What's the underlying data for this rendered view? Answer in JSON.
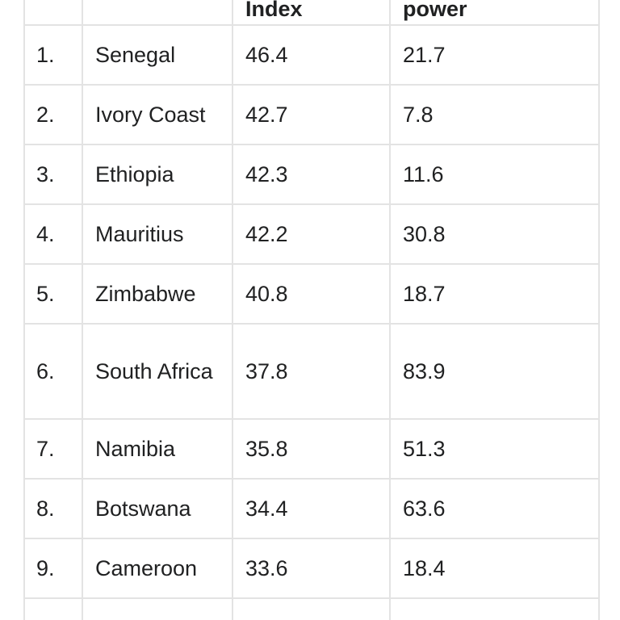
{
  "table": {
    "headers": [
      "",
      "",
      "Index",
      "power"
    ],
    "rows": [
      {
        "rank": "1.",
        "country": "Senegal",
        "index": "46.4",
        "power": "21.7"
      },
      {
        "rank": "2.",
        "country": "Ivory Coast",
        "index": "42.7",
        "power": "7.8"
      },
      {
        "rank": "3.",
        "country": "Ethiopia",
        "index": "42.3",
        "power": "11.6"
      },
      {
        "rank": "4.",
        "country": "Mauritius",
        "index": "42.2",
        "power": "30.8"
      },
      {
        "rank": "5.",
        "country": "Zimbabwe",
        "index": "40.8",
        "power": "18.7"
      },
      {
        "rank": "6.",
        "country": "South Africa",
        "index": "37.8",
        "power": "83.9"
      },
      {
        "rank": "7.",
        "country": "Namibia",
        "index": "35.8",
        "power": "51.3"
      },
      {
        "rank": "8.",
        "country": "Botswana",
        "index": "34.4",
        "power": "63.6"
      },
      {
        "rank": "9.",
        "country": "Cameroon",
        "index": "33.6",
        "power": "18.4"
      }
    ]
  }
}
